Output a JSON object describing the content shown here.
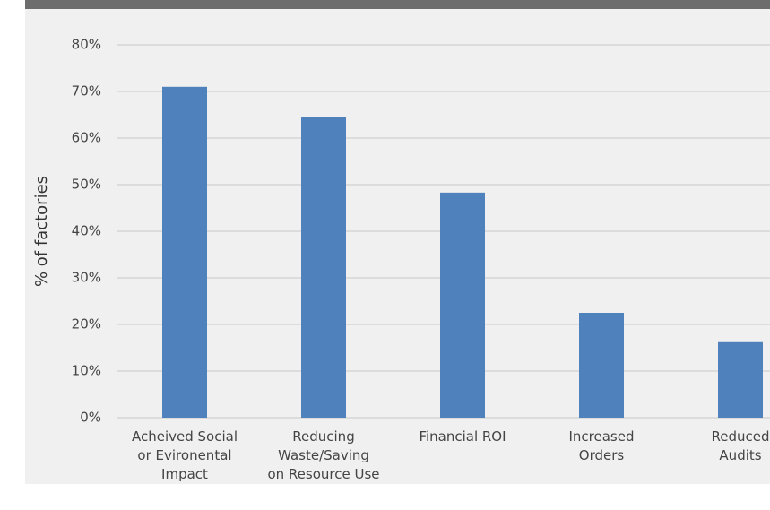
{
  "chart_data": {
    "type": "bar",
    "y_label": "% of factories",
    "categories": [
      "Acheived Social\nor Evironental\nImpact",
      "Reducing\nWaste/Saving\non Resource Use",
      "Financial ROI",
      "Increased\nOrders",
      "Reduced\nAudits"
    ],
    "values": [
      71,
      64.5,
      48.3,
      22.5,
      16.2
    ],
    "color": "#4f81bd",
    "ylim": [
      0,
      80
    ],
    "yticks": [
      {
        "value": 0,
        "label": "0%"
      },
      {
        "value": 10,
        "label": "10%"
      },
      {
        "value": 20,
        "label": "20%"
      },
      {
        "value": 30,
        "label": "30%"
      },
      {
        "value": 40,
        "label": "40%"
      },
      {
        "value": 50,
        "label": "50%"
      },
      {
        "value": 60,
        "label": "60%"
      },
      {
        "value": 70,
        "label": "70%"
      },
      {
        "value": 80,
        "label": "80%"
      }
    ],
    "grid": true
  }
}
